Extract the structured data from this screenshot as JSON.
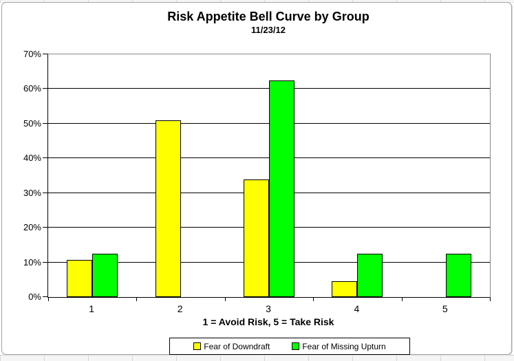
{
  "chart_data": {
    "type": "bar",
    "title": "Risk Appetite Bell Curve by Group",
    "subtitle": "11/23/12",
    "xlabel": "1 = Avoid Risk, 5 = Take Risk",
    "ylabel": "",
    "categories": [
      "1",
      "2",
      "3",
      "4",
      "5"
    ],
    "series": [
      {
        "name": "Fear of Downdraft",
        "color": "#FFFF00",
        "values": [
          10.7,
          50.9,
          33.9,
          4.5,
          0.0
        ]
      },
      {
        "name": "Fear of Missing Upturn",
        "color": "#00FF00",
        "values": [
          12.5,
          0.0,
          62.5,
          12.5,
          12.5
        ]
      }
    ],
    "ylim": [
      0,
      70
    ],
    "y_tick_step": 10,
    "y_tick_labels": [
      "0%",
      "10%",
      "20%",
      "30%",
      "40%",
      "50%",
      "60%",
      "70%"
    ],
    "grid": true,
    "legend_position": "bottom",
    "bar_border_color": "#000000",
    "gridline_color": "#000000",
    "plot_border_color": "#868686"
  }
}
